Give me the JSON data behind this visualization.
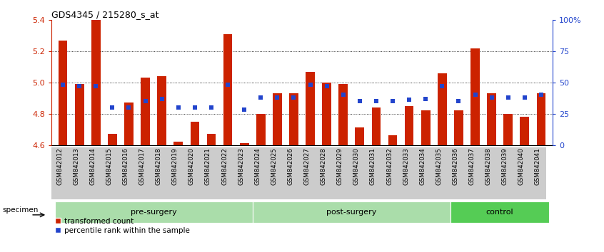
{
  "title": "GDS4345 / 215280_s_at",
  "samples": [
    "GSM842012",
    "GSM842013",
    "GSM842014",
    "GSM842015",
    "GSM842016",
    "GSM842017",
    "GSM842018",
    "GSM842019",
    "GSM842020",
    "GSM842021",
    "GSM842022",
    "GSM842023",
    "GSM842024",
    "GSM842025",
    "GSM842026",
    "GSM842027",
    "GSM842028",
    "GSM842029",
    "GSM842030",
    "GSM842031",
    "GSM842032",
    "GSM842033",
    "GSM842034",
    "GSM842035",
    "GSM842036",
    "GSM842037",
    "GSM842038",
    "GSM842039",
    "GSM842040",
    "GSM842041"
  ],
  "red_values": [
    5.27,
    4.99,
    5.4,
    4.67,
    4.87,
    5.03,
    5.04,
    4.62,
    4.75,
    4.67,
    5.31,
    4.61,
    4.8,
    4.93,
    4.93,
    5.07,
    5.0,
    4.99,
    4.71,
    4.84,
    4.66,
    4.85,
    4.82,
    5.06,
    4.82,
    5.22,
    4.93,
    4.8,
    4.78,
    4.93
  ],
  "blue_pcts": [
    48,
    47,
    47,
    30,
    30,
    35,
    37,
    30,
    30,
    30,
    48,
    28,
    38,
    38,
    38,
    48,
    47,
    40,
    35,
    35,
    35,
    36,
    37,
    47,
    35,
    40,
    38,
    38,
    38,
    40
  ],
  "groups": [
    {
      "label": "pre-surgery",
      "start": 0,
      "end": 11,
      "color": "#aaddaa"
    },
    {
      "label": "post-surgery",
      "start": 12,
      "end": 23,
      "color": "#aaddaa"
    },
    {
      "label": "control",
      "start": 24,
      "end": 29,
      "color": "#55cc55"
    }
  ],
  "ymin": 4.6,
  "ymax": 5.4,
  "yticks": [
    4.6,
    4.8,
    5.0,
    5.2,
    5.4
  ],
  "right_yticks": [
    0,
    25,
    50,
    75,
    100
  ],
  "right_ylabels": [
    "0",
    "25",
    "50",
    "75",
    "100%"
  ],
  "bar_color": "#CC2200",
  "blue_color": "#2244CC",
  "tick_color_left": "#CC2200",
  "tick_color_right": "#2244CC"
}
